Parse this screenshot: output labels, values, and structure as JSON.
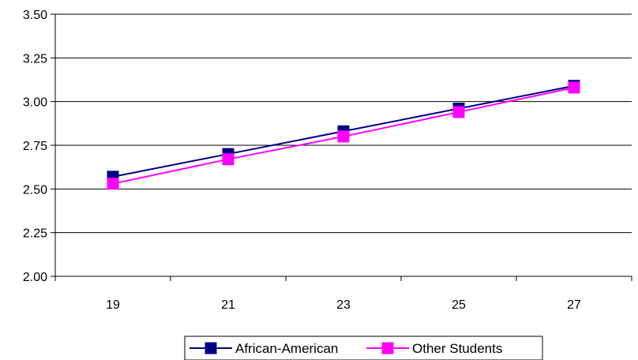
{
  "chart_data": {
    "type": "line",
    "title": "",
    "xlabel": "",
    "ylabel": "",
    "categories": [
      "19",
      "21",
      "23",
      "25",
      "27"
    ],
    "ylim": [
      2.0,
      3.5
    ],
    "yticks": [
      "2.00",
      "2.25",
      "2.50",
      "2.75",
      "3.00",
      "3.25",
      "3.50"
    ],
    "grid": "horizontal",
    "legend_position": "bottom",
    "series": [
      {
        "name": "African-American",
        "color": "#000080",
        "marker": "square",
        "values": [
          2.57,
          2.7,
          2.83,
          2.96,
          3.09
        ]
      },
      {
        "name": "Other Students",
        "color": "#FF00FF",
        "marker": "square",
        "values": [
          2.53,
          2.67,
          2.8,
          2.94,
          3.08
        ]
      }
    ]
  }
}
